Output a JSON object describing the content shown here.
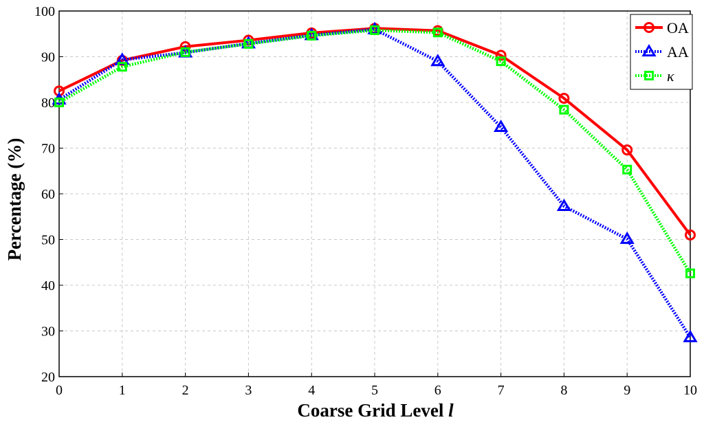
{
  "chart_data": {
    "type": "line",
    "xlabel": "Coarse Grid Level",
    "xlabel_var": "l",
    "ylabel": "Percentage (%)",
    "x": [
      0,
      1,
      2,
      3,
      4,
      5,
      6,
      7,
      8,
      9,
      10
    ],
    "xlim": [
      0,
      10
    ],
    "ylim": [
      20,
      100
    ],
    "xticks": [
      "0",
      "1",
      "2",
      "3",
      "4",
      "5",
      "6",
      "7",
      "8",
      "9",
      "10"
    ],
    "yticks": [
      "20",
      "30",
      "40",
      "50",
      "60",
      "70",
      "80",
      "90",
      "100"
    ],
    "grid": true,
    "legend_position": "top-right",
    "series": [
      {
        "name": "OA",
        "values": [
          82.5,
          89.2,
          92.2,
          93.6,
          95.2,
          96.2,
          95.7,
          90.3,
          80.9,
          69.6,
          51.0
        ],
        "color": "#ff0000",
        "marker": "circle",
        "dash": "solid"
      },
      {
        "name": "AA",
        "values": [
          80.6,
          89.3,
          90.9,
          92.9,
          94.7,
          96.0,
          89.0,
          74.6,
          57.3,
          50.1,
          28.6
        ],
        "color": "#0000ff",
        "marker": "triangle",
        "dash": "dotted"
      },
      {
        "name": "κ",
        "values": [
          80.0,
          87.8,
          91.0,
          92.8,
          94.6,
          95.8,
          95.3,
          89.0,
          78.4,
          65.3,
          42.6
        ],
        "color": "#00ff00",
        "marker": "square",
        "dash": "dotted"
      }
    ]
  }
}
